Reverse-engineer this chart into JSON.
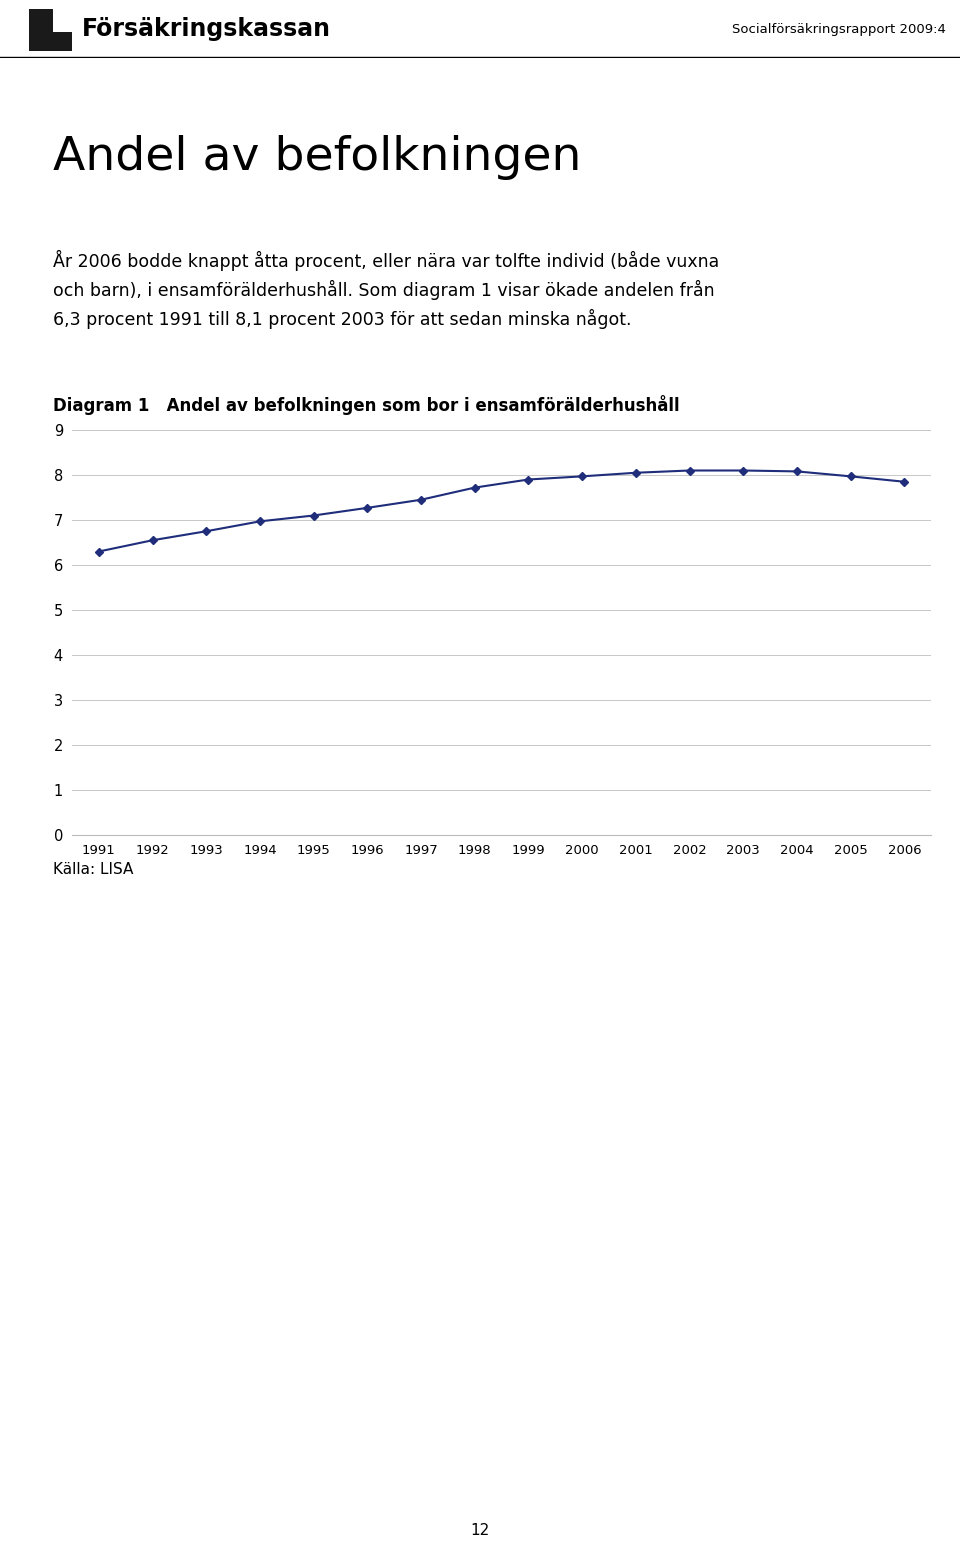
{
  "title_main": "Andel av befolkningen",
  "header_left": "Försäkringskassan",
  "header_right": "Socialförsäkringsrapport 2009:4",
  "body_text": "År 2006 bodde knappt åtta procent, eller nära var tolfte individ (både vuxna\noch barn), i ensamförälderhushåll. Som diagram 1 visar ökade andelen från\n6,3 procent 1991 till 8,1 procent 2003 för att sedan minska något.",
  "diagram_label": "Diagram 1   Andel av befolkningen som bor i ensamförälderhushåll",
  "source_label": "Källa: LISA",
  "page_number": "12",
  "years": [
    1991,
    1992,
    1993,
    1994,
    1995,
    1996,
    1997,
    1998,
    1999,
    2000,
    2001,
    2002,
    2003,
    2004,
    2005,
    2006
  ],
  "values": [
    6.3,
    6.55,
    6.75,
    6.97,
    7.1,
    7.27,
    7.45,
    7.72,
    7.9,
    7.97,
    8.05,
    8.1,
    8.1,
    8.08,
    7.97,
    7.85
  ],
  "line_color": "#1F2D7B",
  "marker": "D",
  "marker_size": 4,
  "ylim": [
    0,
    9
  ],
  "yticks": [
    0,
    1,
    2,
    3,
    4,
    5,
    6,
    7,
    8,
    9
  ],
  "background_color": "#ffffff",
  "grid_color": "#c8c8c8",
  "axes_color": "#999999"
}
